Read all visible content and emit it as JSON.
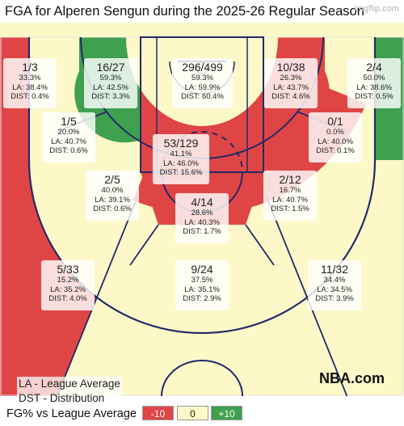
{
  "header": {
    "title": "FGA for Alperen Sengun during the 2025-26 Regular Season",
    "watermark": "imgflip.com"
  },
  "colors": {
    "below": "#e04545",
    "neutral": "#fcf8c8",
    "above": "#3fa04f",
    "court_line": "#222a6a"
  },
  "chart_data": {
    "type": "heatmap",
    "title": "FGA for Alperen Sengun during the 2025-26 Regular Season",
    "color_scale": {
      "label": "FG% vs League Average",
      "low": "-10",
      "mid": "0",
      "high": "+10"
    },
    "zones": [
      {
        "id": "left-corner-3",
        "fga": "1/3",
        "fg_pct": "33.3%",
        "league_avg": "LA: 38.4%",
        "distribution": "DIST: 0.4%",
        "shade": "below"
      },
      {
        "id": "left-baseline-mid",
        "fga": "16/27",
        "fg_pct": "59.3%",
        "league_avg": "LA: 42.5%",
        "distribution": "DIST: 3.3%",
        "shade": "above"
      },
      {
        "id": "restricted-area",
        "fga": "296/499",
        "fg_pct": "59.3%",
        "league_avg": "LA: 59.9%",
        "distribution": "DIST: 60.4%",
        "shade": "neutral"
      },
      {
        "id": "right-baseline-mid",
        "fga": "10/38",
        "fg_pct": "26.3%",
        "league_avg": "LA: 43.7%",
        "distribution": "DIST: 4.6%",
        "shade": "below"
      },
      {
        "id": "right-corner-3",
        "fga": "2/4",
        "fg_pct": "50.0%",
        "league_avg": "LA: 38.6%",
        "distribution": "DIST: 0.5%",
        "shade": "above"
      },
      {
        "id": "left-elbow-mid",
        "fga": "1/5",
        "fg_pct": "20.0%",
        "league_avg": "LA: 40.7%",
        "distribution": "DIST: 0.6%",
        "shade": "below"
      },
      {
        "id": "paint-non-ra",
        "fga": "53/129",
        "fg_pct": "41.1%",
        "league_avg": "LA: 46.0%",
        "distribution": "DIST: 15.6%",
        "shade": "below"
      },
      {
        "id": "right-elbow-mid",
        "fga": "0/1",
        "fg_pct": "0.0%",
        "league_avg": "LA: 40.0%",
        "distribution": "DIST: 0.1%",
        "shade": "below"
      },
      {
        "id": "left-wing-mid",
        "fga": "2/5",
        "fg_pct": "40.0%",
        "league_avg": "LA: 39.1%",
        "distribution": "DIST: 0.6%",
        "shade": "neutral"
      },
      {
        "id": "right-wing-mid",
        "fga": "2/12",
        "fg_pct": "16.7%",
        "league_avg": "LA: 40.7%",
        "distribution": "DIST: 1.5%",
        "shade": "below"
      },
      {
        "id": "top-key-mid",
        "fga": "4/14",
        "fg_pct": "28.6%",
        "league_avg": "LA: 40.3%",
        "distribution": "DIST: 1.7%",
        "shade": "below"
      },
      {
        "id": "left-wing-3",
        "fga": "5/33",
        "fg_pct": "15.2%",
        "league_avg": "LA: 35.2%",
        "distribution": "DIST: 4.0%",
        "shade": "below"
      },
      {
        "id": "top-key-3",
        "fga": "9/24",
        "fg_pct": "37.5%",
        "league_avg": "LA: 35.1%",
        "distribution": "DIST: 2.9%",
        "shade": "neutral"
      },
      {
        "id": "right-wing-3",
        "fga": "11/32",
        "fg_pct": "34.4%",
        "league_avg": "LA: 34.5%",
        "distribution": "DIST: 3.9%",
        "shade": "neutral"
      }
    ]
  },
  "footer": {
    "note_la": "LA - League Average",
    "note_dst": "DST - Distribution",
    "brand": "NBA.com",
    "scale_label": "FG% vs League Average",
    "scale_low": "-10",
    "scale_mid": "0",
    "scale_high": "+10"
  }
}
